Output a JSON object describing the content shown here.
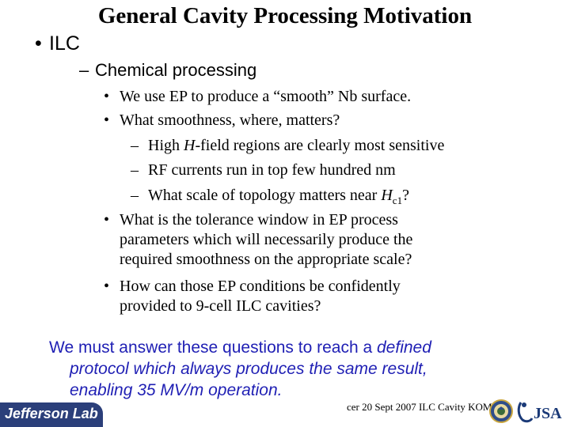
{
  "slide": {
    "title": "General Cavity Processing Motivation",
    "level1": {
      "bullet": "•",
      "text": "ILC"
    },
    "level2": {
      "bullet": "–",
      "text": "Chemical processing"
    },
    "items": [
      {
        "bullet": "•",
        "text": "We use EP to produce a “smooth” Nb surface."
      },
      {
        "bullet": "•",
        "text": "What smoothness, where, matters?"
      }
    ],
    "subitems": [
      {
        "bullet": "–",
        "pre": "High ",
        "em": "H",
        "post": "-field regions are clearly most sensitive"
      },
      {
        "bullet": "–",
        "text": "RF currents run in top few hundred nm"
      },
      {
        "bullet": "–",
        "pre": "What scale of topology matters near ",
        "em": "H",
        "sub": "c1",
        "post": "?"
      }
    ],
    "item3": {
      "bullet": "•",
      "lines": [
        "What is the tolerance window in EP process",
        "parameters which will necessarily produce the",
        "required smoothness on the appropriate scale?"
      ]
    },
    "item4": {
      "bullet": "•",
      "lines": [
        "How can those EP conditions be confidently",
        "provided to 9-cell ILC cavities?"
      ]
    },
    "conclusion": {
      "line1_normal": "We must answer these questions to reach a ",
      "line1_italic": "defined",
      "line2": "protocol which always produces the same result,",
      "line3": "enabling 35 MV/m operation."
    }
  },
  "footer": {
    "logo_text": "Jefferson Lab",
    "text": "cer 20 Sept 2007 ILC Cavity KOM",
    "seal_icon": "doe-seal-icon",
    "jsa_logo_text": "JSA"
  },
  "colors": {
    "conclusion_text": "#1f1fb4",
    "logo_bg": "#2b3f7a"
  }
}
